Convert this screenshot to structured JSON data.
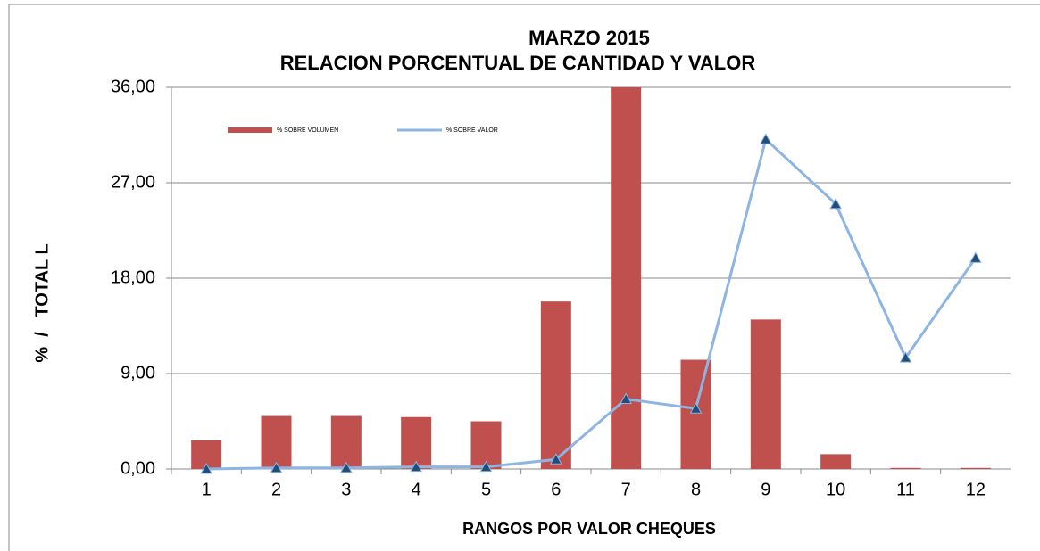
{
  "chart_data": {
    "type": "bar_line",
    "title": [
      "MARZO 2015",
      "RELACION PORCENTUAL DE CANTIDAD Y VALOR"
    ],
    "x_label": "RANGOS POR VALOR CHEQUES",
    "y_label": "%  /   TOTAL L",
    "categories": [
      "1",
      "2",
      "3",
      "4",
      "5",
      "6",
      "7",
      "8",
      "9",
      "10",
      "11",
      "12"
    ],
    "series": [
      {
        "name": "% SOBRE VOLUMEN",
        "type": "bar",
        "color": "#c0504d",
        "values": [
          2.7,
          5.0,
          5.0,
          4.9,
          4.5,
          15.8,
          36,
          10.3,
          14.1,
          1.4,
          0.1,
          0.1
        ]
      },
      {
        "name": "% SOBRE VALOR",
        "type": "line",
        "color": "#8db4e2",
        "marker_color": "#1f4e79",
        "values": [
          0.0,
          0.1,
          0.1,
          0.2,
          0.2,
          0.9,
          6.6,
          5.7,
          31.1,
          25.0,
          10.5,
          19.9
        ]
      }
    ],
    "ylim": [
      0,
      36
    ],
    "yticks": [
      {
        "value": 0,
        "label": "0,00"
      },
      {
        "value": 9,
        "label": "9,00"
      },
      {
        "value": 18,
        "label": "18,00"
      },
      {
        "value": 27,
        "label": "27,00"
      },
      {
        "value": 36,
        "label": "36,00"
      }
    ],
    "grid": true
  }
}
